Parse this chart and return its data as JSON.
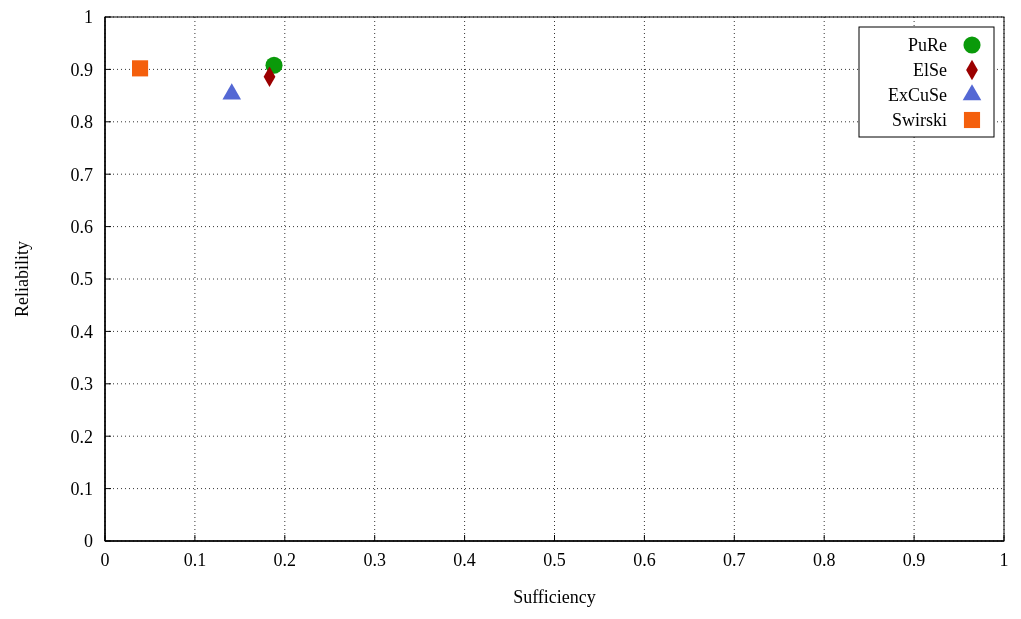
{
  "chart_data": {
    "type": "scatter",
    "xlabel": "Sufficiency",
    "ylabel": "Reliability",
    "xlim": [
      0,
      1
    ],
    "ylim": [
      0,
      1
    ],
    "xticks": [
      0,
      0.1,
      0.2,
      0.3,
      0.4,
      0.5,
      0.6,
      0.7,
      0.8,
      0.9,
      1
    ],
    "yticks": [
      0,
      0.1,
      0.2,
      0.3,
      0.4,
      0.5,
      0.6,
      0.7,
      0.8,
      0.9,
      1
    ],
    "grid": true,
    "legend": "top right",
    "series": [
      {
        "name": "PuRe",
        "color": "#0a9a0a",
        "marker": "circle",
        "x": [
          0.188
        ],
        "values": [
          0.908
        ]
      },
      {
        "name": "ElSe",
        "color": "#9b0000",
        "marker": "diamond",
        "x": [
          0.183
        ],
        "values": [
          0.886
        ]
      },
      {
        "name": "ExCuSe",
        "color": "#5468d4",
        "marker": "triangle",
        "x": [
          0.141
        ],
        "values": [
          0.853
        ]
      },
      {
        "name": "Swirski",
        "color": "#f45f0c",
        "marker": "square",
        "x": [
          0.039
        ],
        "values": [
          0.902
        ]
      }
    ]
  }
}
